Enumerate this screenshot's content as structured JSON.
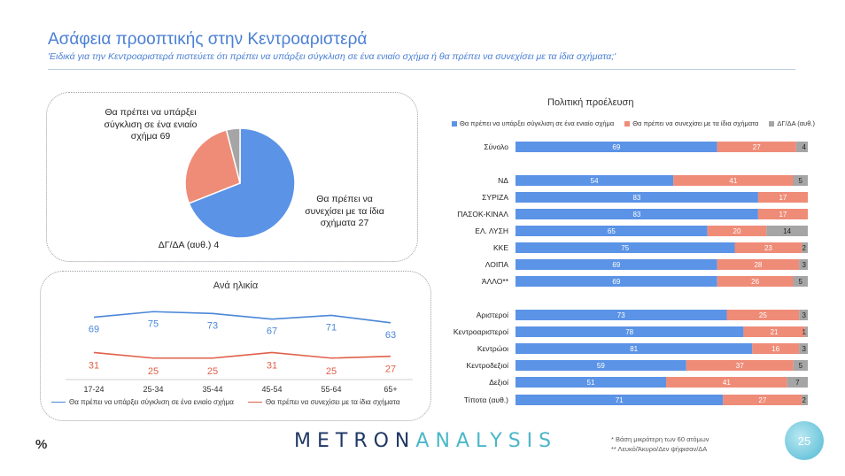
{
  "header": {
    "title": "Ασάφεια προοπτικής στην Κεντροαριστερά",
    "subtitle": "'Ειδικά για την Κεντροαριστερά πιστεύετε ότι πρέπει να υπάρξει σύγκλιση σε ένα ενιαίο σχήμα ή θα πρέπει να συνεχίσει με τα ίδια σχήματα;'"
  },
  "footer": {
    "percent_sign": "%",
    "logo_part1": "METRON",
    "logo_part2": "ANALYSIS",
    "note1": "* Βάση μικρότερη των 60 ατόμων",
    "note2": "** Λευκό/Άκυρο/Δεν ψήφισαν/ΔΑ",
    "page_number": "25"
  },
  "colors": {
    "blue": "#5b93e6",
    "salmon": "#ef8c78",
    "gray": "#a5a5a5",
    "line_blue": "#4a86d8",
    "line_red": "#e0604a"
  },
  "pie_labels": {
    "a": "Θα πρέπει να υπάρξει σύγκλιση σε ένα ενιαίο σχήμα 69",
    "b": "Θα πρέπει να συνεχίσει με τα ίδια σχήματα 27",
    "c": "ΔΓ/ΔΑ (αυθ.) 4"
  },
  "chart_data": [
    {
      "type": "pie",
      "categories": [
        "Θα πρέπει να υπάρξει σύγκλιση σε ένα ενιαίο σχήμα",
        "Θα πρέπει να συνεχίσει με τα ίδια σχήματα",
        "ΔΓ/ΔΑ (αυθ.)"
      ],
      "values": [
        69,
        27,
        4
      ],
      "colors": [
        "#5b93e6",
        "#ef8c78",
        "#a5a5a5"
      ]
    },
    {
      "type": "line",
      "title": "Ανά ηλικία",
      "categories": [
        "17-24",
        "25-34",
        "35-44",
        "45-54",
        "55-64",
        "65+"
      ],
      "series": [
        {
          "name": "Θα πρέπει να υπάρξει σύγκλιση σε ένα ενιαίο σχήμα",
          "values": [
            69,
            75,
            73,
            67,
            71,
            63
          ],
          "color": "#4a86d8"
        },
        {
          "name": "Θα πρέπει να συνεχίσει με τα ίδια σχήματα",
          "values": [
            31,
            25,
            25,
            31,
            25,
            27
          ],
          "color": "#e0604a"
        }
      ],
      "ylim": [
        0,
        100
      ]
    },
    {
      "type": "bar",
      "orientation": "horizontal-stacked",
      "title": "Πολιτική προέλευση",
      "series_names": [
        "Θα πρέπει να υπάρξει σύγκλιση σε ένα ενιαίο σχήμα",
        "Θα πρέπει να συνεχίσει με τα ίδια σχήματα",
        "ΔΓ/ΔΑ (αυθ.)"
      ],
      "series_colors": [
        "#5b93e6",
        "#ef8c78",
        "#a5a5a5"
      ],
      "groups": [
        [
          {
            "label": "Σύνολο",
            "values": [
              69,
              27,
              4
            ]
          }
        ],
        [
          {
            "label": "ΝΔ",
            "values": [
              54,
              41,
              5
            ]
          },
          {
            "label": "ΣΥΡΙΖΑ",
            "values": [
              83,
              17,
              0
            ]
          },
          {
            "label": "ΠΑΣΟΚ-ΚΙΝΑΛ",
            "values": [
              83,
              17,
              0
            ]
          },
          {
            "label": "ΕΛ. ΛΥΣΗ",
            "values": [
              65,
              20,
              14
            ]
          },
          {
            "label": "ΚΚΕ",
            "values": [
              75,
              23,
              2
            ]
          },
          {
            "label": "ΛΟΙΠΑ",
            "values": [
              69,
              28,
              3
            ]
          },
          {
            "label": "ΆΛΛΟ**",
            "values": [
              69,
              26,
              5
            ]
          }
        ],
        [
          {
            "label": "Αριστεροί",
            "values": [
              73,
              25,
              3
            ]
          },
          {
            "label": "Κεντροαριστεροί",
            "values": [
              78,
              21,
              1
            ]
          },
          {
            "label": "Κεντρώοι",
            "values": [
              81,
              16,
              3
            ]
          },
          {
            "label": "Κεντροδεξιοί",
            "values": [
              59,
              37,
              5
            ]
          },
          {
            "label": "Δεξιοί",
            "values": [
              51,
              41,
              7
            ]
          },
          {
            "label": "Τίποτα (αυθ.)",
            "values": [
              71,
              27,
              2
            ]
          }
        ]
      ]
    }
  ]
}
